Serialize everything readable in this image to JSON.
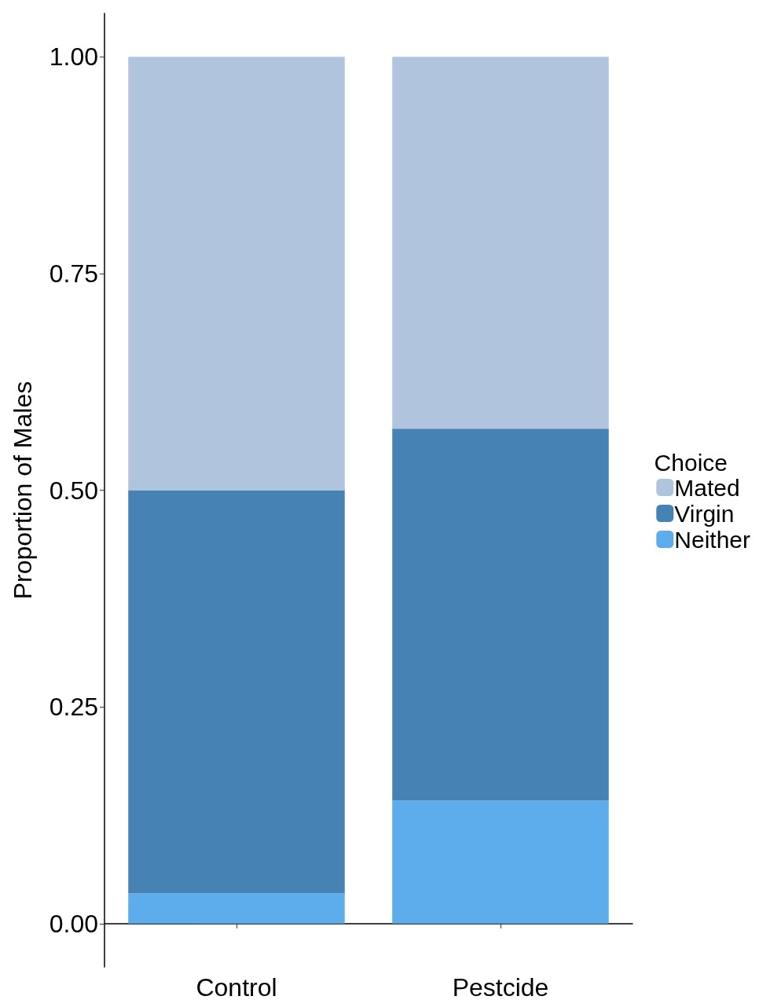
{
  "chart_data": {
    "type": "bar",
    "stacked": true,
    "ylabel": "Proportion of Males",
    "legend_title": "Choice",
    "categories": [
      "Control",
      "Pestcide"
    ],
    "series": [
      {
        "name": "Neither",
        "color": "#5dadec",
        "values": [
          0.035,
          0.142
        ]
      },
      {
        "name": "Virgin",
        "color": "#4682b4",
        "values": [
          0.465,
          0.429
        ]
      },
      {
        "name": "Mated",
        "color": "#b0c4de",
        "values": [
          0.5,
          0.429
        ]
      }
    ],
    "ylim": [
      -0.05,
      1.05
    ],
    "yticks": [
      {
        "value": 0,
        "label": "0.00"
      },
      {
        "value": 0.25,
        "label": "0.25"
      },
      {
        "value": 0.5,
        "label": "0.50"
      },
      {
        "value": 0.75,
        "label": "0.75"
      },
      {
        "value": 1,
        "label": "1.00"
      }
    ],
    "grid": false,
    "legend": "right"
  }
}
